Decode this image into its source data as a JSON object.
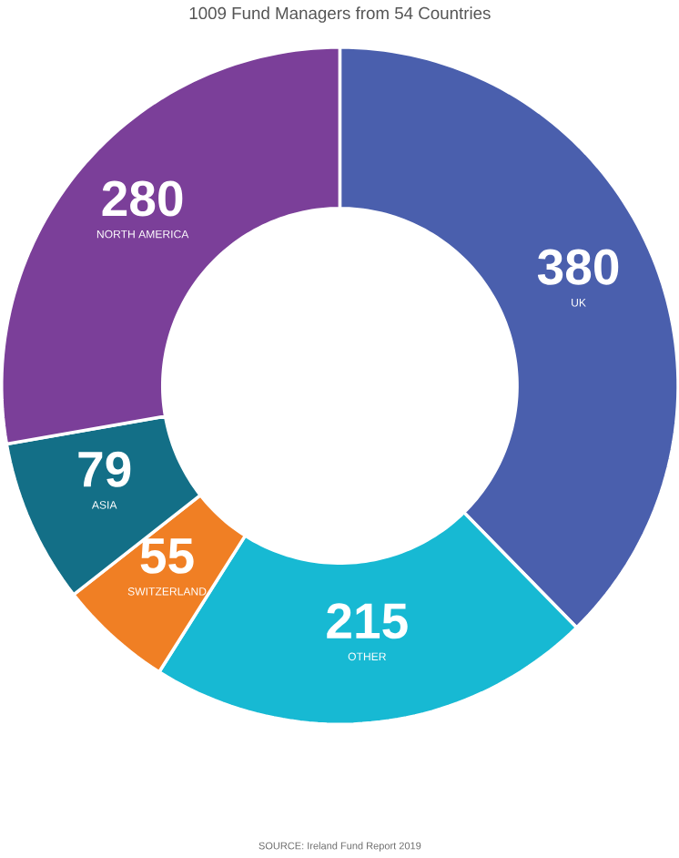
{
  "chart_data": {
    "type": "donut",
    "title": "1009 Fund Managers from 54 Countries",
    "categories": [
      "UK",
      "OTHER",
      "SWITZERLAND",
      "ASIA",
      "NORTH AMERICA"
    ],
    "values": [
      380,
      215,
      55,
      79,
      280
    ],
    "colors": [
      "#4a5fad",
      "#17b9d3",
      "#f07f24",
      "#136f87",
      "#7b3f99"
    ],
    "data_labels": true,
    "annotations": [
      "SOURCE: Ireland Fund Report 2019"
    ]
  }
}
